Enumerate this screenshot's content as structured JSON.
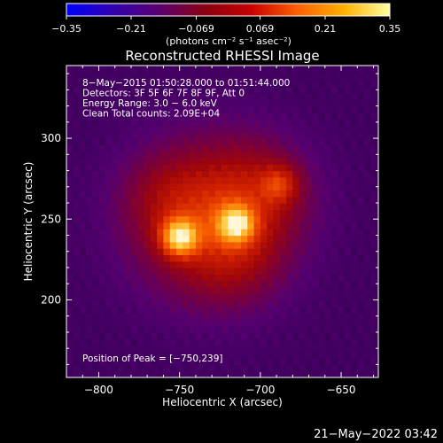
{
  "chart_data": {
    "type": "heatmap",
    "title": "Reconstructed RHESSI Image",
    "xlabel": "Heliocentric X (arcsec)",
    "ylabel": "Heliocentric Y (arcsec)",
    "xlim": [
      -820,
      -627
    ],
    "ylim": [
      152,
      345
    ],
    "x_ticks": [
      -800,
      -750,
      -700,
      -650
    ],
    "y_ticks": [
      200,
      250,
      300
    ],
    "x_tick_labels": [
      "−800",
      "−750",
      "−700",
      "−650"
    ],
    "y_tick_labels": [
      "200",
      "250",
      "300"
    ],
    "colorbar": {
      "range": [
        -0.35,
        0.35
      ],
      "ticks": [
        -0.35,
        -0.21,
        -0.069,
        0.069,
        0.21,
        0.35
      ],
      "tick_labels": [
        "−0.35",
        "−0.21",
        "−0.069",
        "0.069",
        "0.21",
        "0.35"
      ],
      "unit_text": "(photons cm⁻² s⁻¹ asec⁻²)",
      "colormap": [
        "#0000ff",
        "#3000b0",
        "#5a0070",
        "#8a0010",
        "#c80000",
        "#ff6000",
        "#ffb000",
        "#ffffa0"
      ]
    },
    "sources": [
      {
        "x": -750,
        "y": 239,
        "relative_intensity": 1.0
      },
      {
        "x": -715,
        "y": 247,
        "relative_intensity": 0.88
      },
      {
        "x": -688,
        "y": 272,
        "relative_intensity": 0.45
      }
    ],
    "info_lines": [
      " 8−May−2015 01:50:28.000 to 01:51:44.000",
      "Detectors: 3F 5F 6F 7F 8F 9F, Att 0",
      "Energy Range: 3.0 − 6.0 keV",
      "Clean    Total counts: 2.09E+04"
    ],
    "peak_text": "Position of Peak = [−750,239]",
    "footer_date": "21−May−2022 03:42"
  }
}
